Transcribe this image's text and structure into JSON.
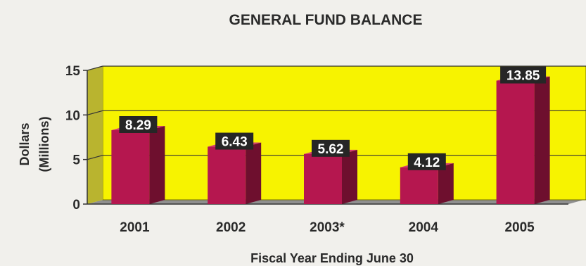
{
  "chart_data": {
    "type": "bar",
    "title": "GENERAL FUND BALANCE",
    "xlabel": "Fiscal Year Ending June 30",
    "ylabel": [
      "Dollars",
      "(Millions)"
    ],
    "categories": [
      "2001",
      "2002",
      "2003*",
      "2004",
      "2005"
    ],
    "values": [
      8.29,
      6.43,
      5.62,
      4.12,
      13.85
    ],
    "data_labels": [
      "8.29",
      "6.43",
      "5.62",
      "4.12",
      "13.85"
    ],
    "y_ticks": [
      "0",
      "5",
      "10",
      "15"
    ],
    "ylim": [
      0,
      15
    ],
    "grid": true,
    "colors": {
      "background": "#f1f0ec",
      "plot_area": "#f7f300",
      "plot_side": "#b9b42f",
      "floor": "#8f8f8f",
      "bar_front": "#b5174f",
      "bar_side": "#6e0f2e",
      "bar_top": "#d43e72",
      "label_box": "#262626",
      "axis": "#333333"
    }
  }
}
